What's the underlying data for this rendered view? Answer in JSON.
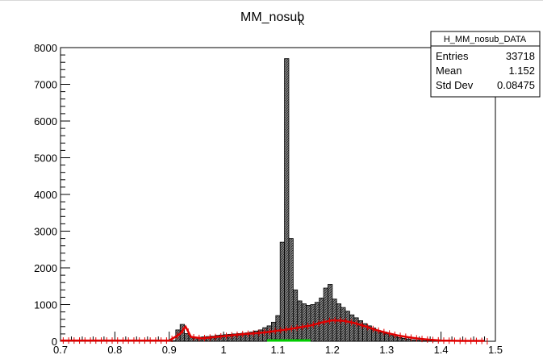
{
  "title": {
    "main": "MM_nosub",
    "subscript": "K"
  },
  "stats_box": {
    "name": "H_MM_nosub_DATA",
    "rows": [
      {
        "label": "Entries",
        "value": "33718"
      },
      {
        "label": "Mean",
        "value": "1.152"
      },
      {
        "label": "Std Dev",
        "value": "0.08475"
      }
    ]
  },
  "colors": {
    "histogram": "#000000",
    "fit_curve": "#e00000",
    "highlight": "#00cc00"
  },
  "chart_data": {
    "type": "bar",
    "title": "MM_nosub_K",
    "xlabel": "",
    "ylabel": "",
    "xlim": [
      0.7,
      1.5
    ],
    "ylim": [
      0,
      8000
    ],
    "x_ticks": [
      "0.7",
      "0.8",
      "0.9",
      "1",
      "1.1",
      "1.2",
      "1.3",
      "1.4",
      "1.5"
    ],
    "y_ticks": [
      "0",
      "1000",
      "2000",
      "3000",
      "4000",
      "5000",
      "6000",
      "7000",
      "8000"
    ],
    "bin_width": 0.008,
    "series": [
      {
        "style": "histogram",
        "x": [
          0.908,
          0.916,
          0.924,
          0.932,
          0.94,
          0.948,
          0.956,
          0.964,
          0.972,
          0.98,
          0.988,
          0.996,
          1.004,
          1.012,
          1.02,
          1.028,
          1.036,
          1.044,
          1.052,
          1.06,
          1.068,
          1.076,
          1.084,
          1.092,
          1.1,
          1.108,
          1.116,
          1.124,
          1.132,
          1.14,
          1.148,
          1.156,
          1.164,
          1.172,
          1.18,
          1.188,
          1.196,
          1.204,
          1.212,
          1.22,
          1.228,
          1.236,
          1.244,
          1.252,
          1.26,
          1.268,
          1.276,
          1.284,
          1.292,
          1.3,
          1.308,
          1.316,
          1.324,
          1.332,
          1.34,
          1.348,
          1.356,
          1.364,
          1.372,
          1.38,
          1.388,
          1.396
        ],
        "values": [
          20,
          310,
          460,
          210,
          120,
          110,
          110,
          120,
          130,
          140,
          160,
          170,
          180,
          190,
          200,
          210,
          220,
          230,
          250,
          280,
          310,
          370,
          420,
          520,
          700,
          2700,
          7700,
          2800,
          1400,
          1100,
          1020,
          980,
          1000,
          1060,
          1180,
          1450,
          1550,
          1150,
          1020,
          920,
          820,
          720,
          640,
          560,
          480,
          420,
          360,
          300,
          240,
          200,
          160,
          130,
          100,
          80,
          60,
          40,
          30,
          20,
          15,
          10,
          5,
          2
        ]
      },
      {
        "style": "fit",
        "x": [
          0.7,
          0.74,
          0.78,
          0.82,
          0.86,
          0.9,
          0.92,
          0.93,
          0.94,
          0.96,
          0.98,
          1.0,
          1.02,
          1.04,
          1.06,
          1.08,
          1.1,
          1.12,
          1.14,
          1.16,
          1.18,
          1.2,
          1.22,
          1.24,
          1.26,
          1.28,
          1.3,
          1.32,
          1.34,
          1.36,
          1.38,
          1.4,
          1.44,
          1.48
        ],
        "values": [
          20,
          20,
          20,
          20,
          20,
          20,
          200,
          400,
          120,
          80,
          110,
          140,
          170,
          200,
          220,
          250,
          290,
          330,
          380,
          430,
          510,
          570,
          560,
          500,
          410,
          310,
          230,
          160,
          110,
          70,
          40,
          20,
          10,
          10
        ]
      },
      {
        "style": "highlight",
        "x": [
          1.08,
          1.16
        ],
        "values": [
          0,
          0
        ]
      }
    ]
  }
}
